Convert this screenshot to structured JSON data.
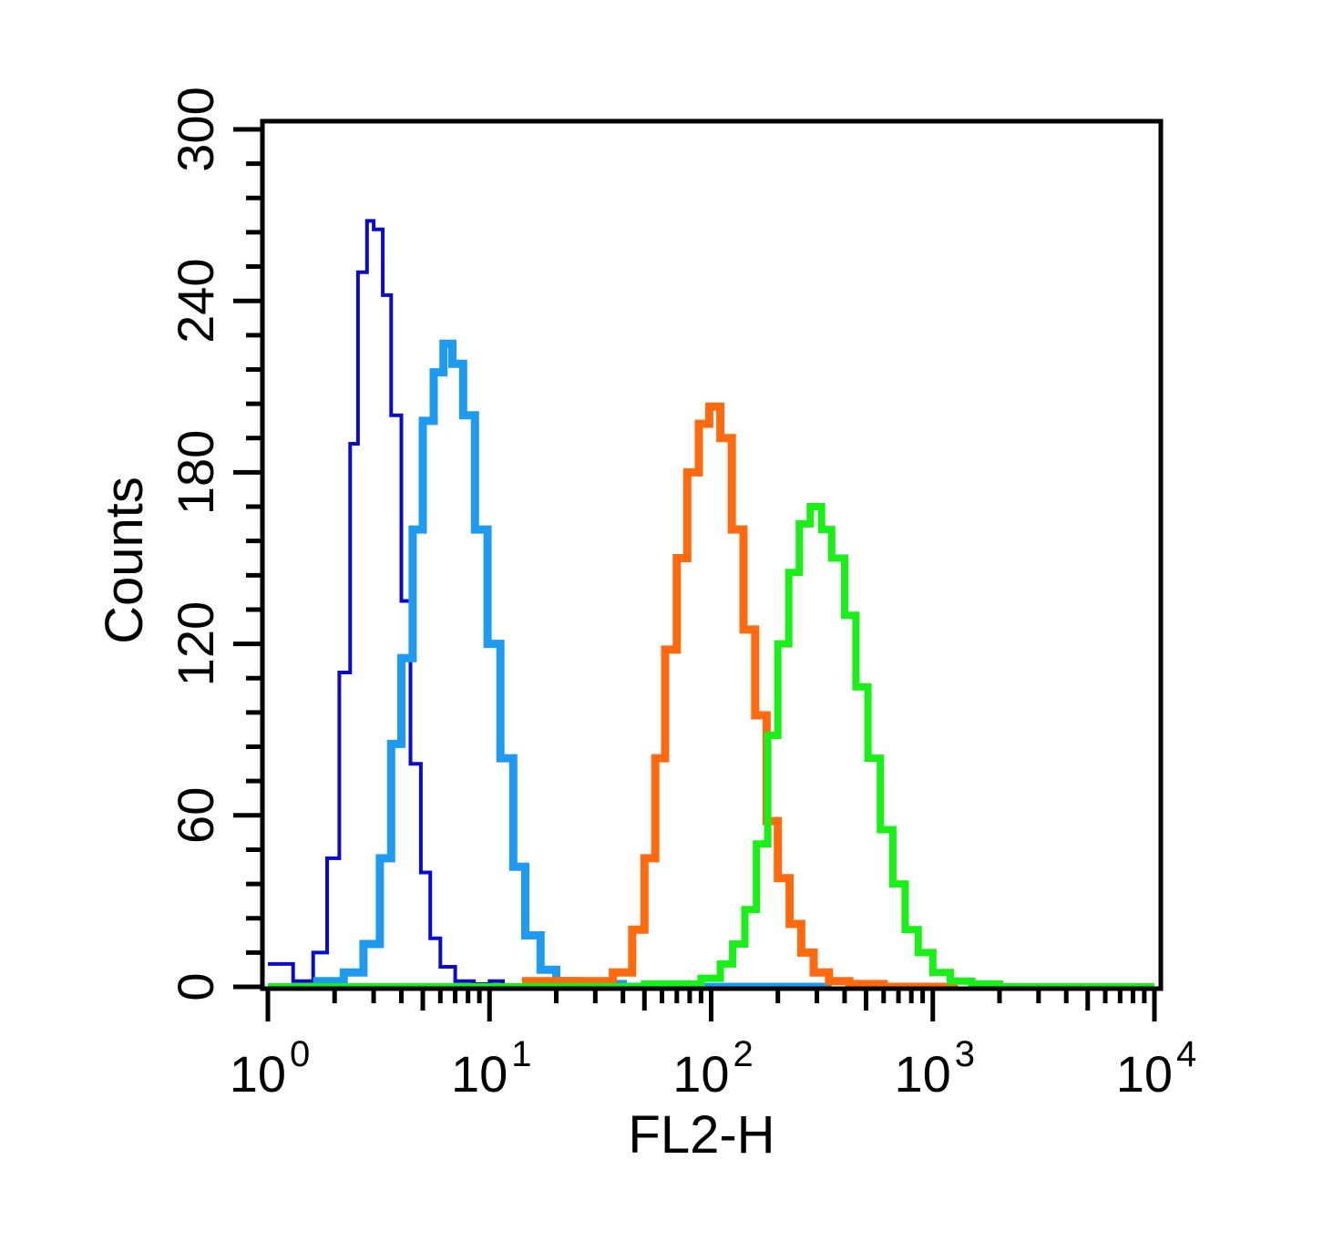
{
  "chart_data": {
    "type": "line",
    "xlabel": "FL2-H",
    "ylabel": "Counts",
    "x_scale": "log",
    "xlim": [
      1,
      10000
    ],
    "ylim": [
      0,
      300
    ],
    "x_ticks": [
      {
        "value": 1,
        "base": "10",
        "exp": "0"
      },
      {
        "value": 10,
        "base": "10",
        "exp": "1"
      },
      {
        "value": 100,
        "base": "10",
        "exp": "2"
      },
      {
        "value": 1000,
        "base": "10",
        "exp": "3"
      },
      {
        "value": 10000,
        "base": "10",
        "exp": "4"
      }
    ],
    "y_ticks": [
      0,
      60,
      120,
      180,
      240,
      300
    ],
    "grid": false,
    "legend": "none",
    "series": [
      {
        "color": "#0A0ACC",
        "x": [
          1.0,
          1.3,
          1.6,
          1.85,
          2.1,
          2.35,
          2.55,
          2.8,
          3.0,
          3.3,
          3.6,
          4.0,
          4.4,
          4.9,
          5.4,
          6.0,
          7.0,
          8.5,
          10.0,
          11.5
        ],
        "y": [
          8,
          2,
          12,
          45,
          110,
          190,
          250,
          268,
          265,
          242,
          200,
          135,
          78,
          40,
          17,
          7,
          2,
          1,
          2,
          0
        ]
      },
      {
        "color": "#1E9BF0",
        "x": [
          1.6,
          2.2,
          2.7,
          3.2,
          3.6,
          4.0,
          4.5,
          5.0,
          5.6,
          6.2,
          6.8,
          7.6,
          8.6,
          9.8,
          11.2,
          12.8,
          14.5,
          17.0,
          20.0,
          25.0,
          40.0,
          100.0,
          350.0
        ],
        "y": [
          2,
          5,
          15,
          45,
          85,
          115,
          160,
          198,
          215,
          225,
          218,
          200,
          160,
          120,
          80,
          42,
          18,
          6,
          2,
          1,
          0,
          0,
          0
        ]
      },
      {
        "color": "#FF6A0F",
        "x": [
          14.0,
          25.0,
          36.0,
          44.0,
          50.0,
          56.0,
          62.0,
          70.0,
          78.0,
          88.0,
          98.0,
          110.0,
          124.0,
          140.0,
          158.0,
          178.0,
          200.0,
          226.0,
          255.0,
          290.0,
          340.0,
          420.0,
          600.0,
          1300.0
        ],
        "y": [
          2,
          2,
          5,
          20,
          45,
          80,
          118,
          150,
          180,
          197,
          203,
          192,
          160,
          125,
          95,
          58,
          38,
          22,
          12,
          5,
          2,
          1,
          0,
          0
        ]
      },
      {
        "color": "#18F018",
        "x": [
          1.0,
          20.0,
          50.0,
          90.0,
          110.0,
          125.0,
          142.0,
          160.0,
          180.0,
          200.0,
          224.0,
          250.0,
          280.0,
          315.0,
          350.0,
          400.0,
          450.0,
          510.0,
          580.0,
          660.0,
          750.0,
          860.0,
          1000.0,
          1200.0,
          1500.0,
          2000.0,
          3000.0,
          10000.0
        ],
        "y": [
          0,
          0,
          1,
          3,
          8,
          15,
          27,
          50,
          88,
          120,
          145,
          162,
          168,
          160,
          150,
          130,
          105,
          80,
          55,
          36,
          20,
          12,
          5,
          2,
          1,
          0,
          0,
          0
        ]
      }
    ]
  }
}
